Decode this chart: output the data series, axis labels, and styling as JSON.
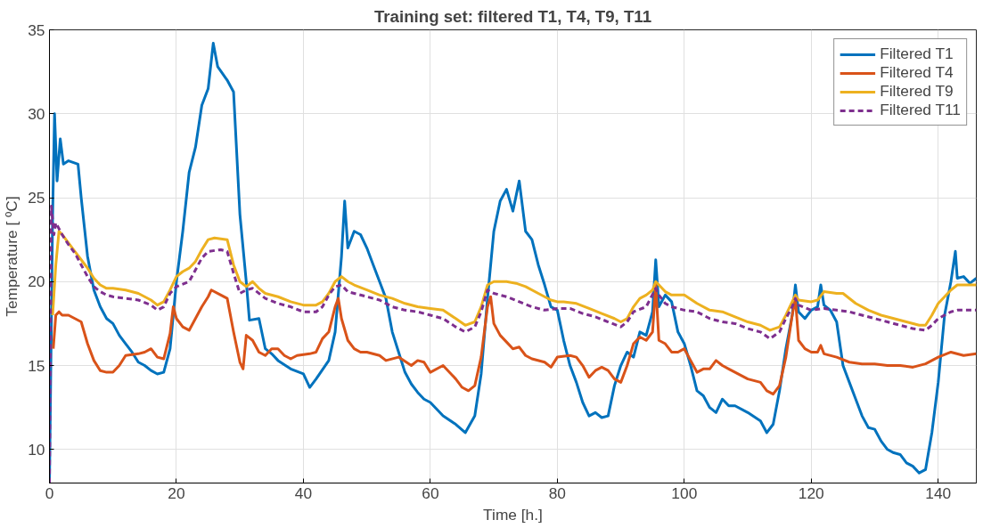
{
  "chart_data": {
    "type": "line",
    "title": "Training set: filtered T1, T4, T9, T11",
    "xlabel": "Time [h.]",
    "ylabel": "Temperature [ ºC]",
    "xlim": [
      0,
      146
    ],
    "ylim": [
      8,
      35
    ],
    "xticks": [
      0,
      20,
      40,
      60,
      80,
      100,
      120,
      140
    ],
    "yticks": [
      10,
      15,
      20,
      25,
      30,
      35
    ],
    "grid": true,
    "legend": "top right",
    "marker": "none",
    "line_style": "solid",
    "series": [
      {
        "name": "Filtered T1",
        "color": "#0072bd",
        "x": [
          0,
          0.5,
          0.8,
          1.2,
          1.7,
          2.2,
          3,
          4.5,
          5,
          6,
          7,
          8,
          9,
          10,
          11,
          12,
          13,
          14,
          15,
          16,
          17,
          18,
          19,
          20,
          21,
          22,
          23,
          24,
          25,
          25.8,
          26.5,
          28,
          29,
          30,
          31,
          31.5,
          33,
          34,
          35,
          36,
          38,
          40,
          41,
          42,
          44,
          45,
          46,
          46.5,
          47,
          48,
          49,
          50,
          51,
          52,
          53,
          54,
          55,
          56,
          57,
          58,
          59,
          60,
          62,
          64,
          65.5,
          67,
          68,
          69,
          70,
          71,
          72,
          73,
          74,
          75,
          76,
          77,
          78,
          79,
          80,
          81,
          82,
          83,
          84,
          85,
          86,
          87,
          88,
          89,
          90,
          91,
          92,
          93,
          94,
          95,
          95.5,
          96,
          97,
          98,
          99,
          100,
          101,
          102,
          103,
          104,
          105,
          106,
          107,
          108,
          110,
          112,
          113,
          114,
          115,
          116,
          117,
          117.5,
          118,
          119,
          120,
          121,
          121.5,
          122,
          123,
          124,
          125,
          126,
          127,
          128,
          129,
          130,
          131,
          132,
          133,
          134,
          135,
          136,
          137,
          138,
          139,
          140,
          141,
          142,
          142.7,
          143,
          144,
          145,
          146
        ],
        "values": [
          8,
          24,
          30,
          26,
          28.5,
          27,
          27.2,
          27,
          25,
          21.5,
          19.5,
          18.5,
          17.8,
          17.5,
          16.8,
          16.3,
          15.8,
          15.2,
          15,
          14.7,
          14.5,
          14.6,
          16,
          20,
          23,
          26.5,
          28,
          30.5,
          31.5,
          34.2,
          32.8,
          32,
          31.3,
          24,
          20,
          17.7,
          17.8,
          16,
          15.7,
          15.3,
          14.8,
          14.5,
          13.7,
          14.2,
          15.3,
          17,
          21.5,
          24.8,
          22,
          23,
          22.8,
          22,
          21,
          20,
          19,
          17,
          15.8,
          14.6,
          13.9,
          13.4,
          13,
          12.8,
          12,
          11.5,
          11,
          12,
          14.5,
          19,
          23,
          24.8,
          25.5,
          24.2,
          26,
          23,
          22.5,
          21,
          19.8,
          18.5,
          18.3,
          16.5,
          15,
          14,
          12.8,
          12,
          12.2,
          11.9,
          12,
          13.8,
          15,
          15.8,
          15.5,
          17,
          16.8,
          18.2,
          21.3,
          18.5,
          19.2,
          18.8,
          17,
          16.3,
          15,
          13.5,
          13.2,
          12.5,
          12.2,
          13,
          12.6,
          12.6,
          12.2,
          11.7,
          11,
          11.5,
          13.5,
          16,
          18,
          19.8,
          18.2,
          17.8,
          18.3,
          18.5,
          19.8,
          18.6,
          18.3,
          17.6,
          15,
          14,
          13,
          12,
          11.3,
          11.2,
          10.5,
          10,
          9.8,
          9.7,
          9.2,
          9,
          8.6,
          8.8,
          11,
          14,
          18,
          20,
          21.8,
          20.2,
          20.3,
          19.9,
          20.2
        ]
      },
      {
        "name": "Filtered T4",
        "color": "#d95319",
        "x": [
          0.6,
          1,
          1.5,
          2,
          3,
          4,
          5,
          6,
          7,
          8,
          9,
          10,
          11,
          12,
          14,
          15,
          16,
          17,
          18,
          19,
          19.5,
          20,
          21,
          22,
          23,
          24,
          25,
          25.5,
          27,
          28,
          29,
          30,
          30.5,
          31,
          32,
          33,
          34,
          35,
          36,
          37,
          38,
          39,
          41,
          42,
          43,
          44,
          45,
          45.5,
          46,
          47,
          48,
          49,
          50,
          52,
          53,
          55,
          57,
          58,
          59,
          60,
          62,
          64,
          65,
          66,
          67,
          68,
          69,
          69.5,
          70,
          71,
          72,
          73,
          74,
          75,
          76,
          78,
          79,
          80,
          82,
          83,
          84,
          85,
          86,
          87,
          88,
          89,
          90,
          91,
          92,
          93,
          94,
          95,
          95.5,
          96,
          97,
          98,
          99,
          100,
          101,
          102,
          103,
          104,
          105,
          106,
          107,
          108,
          110,
          112,
          113,
          114,
          115,
          116,
          117,
          117.5,
          118,
          119,
          120,
          121,
          121.5,
          122,
          124,
          126,
          128,
          130,
          132,
          134,
          136,
          138,
          140,
          142,
          144,
          146
        ],
        "values": [
          16,
          18,
          18.2,
          18,
          18,
          17.8,
          17.6,
          16.3,
          15.3,
          14.7,
          14.6,
          14.6,
          15,
          15.6,
          15.7,
          15.8,
          16,
          15.5,
          15.4,
          16.9,
          18.5,
          17.8,
          17.3,
          17.1,
          17.8,
          18.5,
          19.1,
          19.5,
          19.2,
          19,
          17,
          15.2,
          14.8,
          16.8,
          16.5,
          15.8,
          15.6,
          16,
          16,
          15.6,
          15.4,
          15.6,
          15.7,
          15.8,
          16.6,
          17,
          18.5,
          19,
          17.8,
          16.5,
          16,
          15.8,
          15.8,
          15.6,
          15.3,
          15.5,
          15,
          15.3,
          15.2,
          14.6,
          15,
          14.2,
          13.7,
          13.5,
          13.8,
          15.5,
          18.5,
          19.1,
          17.5,
          16.8,
          16.4,
          16,
          16.1,
          15.6,
          15.4,
          15.2,
          14.9,
          15.5,
          15.6,
          15.5,
          15,
          14.3,
          14.7,
          14.9,
          14.7,
          14.2,
          14,
          15,
          16.3,
          16.7,
          16.5,
          17,
          19.8,
          16.5,
          16.3,
          15.8,
          15.8,
          16,
          15.3,
          14.6,
          14.8,
          14.8,
          15.3,
          15,
          14.8,
          14.6,
          14.2,
          14,
          13.5,
          13.3,
          13.8,
          15.5,
          18,
          19,
          16.5,
          16,
          15.8,
          15.8,
          16.2,
          15.7,
          15.5,
          15.2,
          15.1,
          15.1,
          15,
          15,
          14.9,
          15.1,
          15.5,
          15.8,
          15.6,
          15.7
        ]
      },
      {
        "name": "Filtered T9",
        "color": "#edb120",
        "x": [
          0.5,
          1,
          1.5,
          2,
          3,
          4,
          5,
          6,
          7,
          8,
          9,
          10,
          12,
          14,
          16,
          17,
          18,
          19,
          20,
          21,
          22,
          23,
          24,
          25,
          26,
          28,
          29,
          30,
          31,
          32,
          33,
          34,
          36,
          38,
          40,
          42,
          43,
          44,
          45,
          46,
          47,
          48,
          50,
          52,
          54,
          56,
          58,
          60,
          62,
          64,
          65.5,
          67,
          68,
          69,
          70,
          72,
          73.5,
          75,
          77,
          79,
          80,
          81,
          83,
          85,
          87,
          89,
          90,
          91,
          92,
          93,
          94,
          95,
          95.5,
          96,
          97,
          98,
          100,
          102,
          104,
          106,
          108,
          110,
          112,
          113.5,
          115,
          116,
          117,
          117.5,
          118,
          120,
          121,
          122,
          124,
          125,
          127,
          129,
          131,
          133,
          135,
          137,
          138,
          139,
          140,
          142,
          143,
          146
        ],
        "values": [
          18,
          21,
          23,
          22.8,
          22.3,
          21.8,
          21.3,
          20.8,
          20.2,
          19.8,
          19.6,
          19.6,
          19.5,
          19.3,
          18.9,
          18.6,
          18.8,
          19.5,
          20.3,
          20.6,
          20.8,
          21.2,
          21.9,
          22.5,
          22.6,
          22.5,
          21,
          20,
          19.7,
          20,
          19.6,
          19.3,
          19.1,
          18.8,
          18.6,
          18.6,
          18.8,
          19.3,
          20,
          20.3,
          20,
          19.8,
          19.5,
          19.2,
          19,
          18.7,
          18.5,
          18.4,
          18.3,
          17.8,
          17.4,
          17.6,
          18.5,
          19.8,
          20,
          20,
          19.9,
          19.7,
          19.3,
          18.9,
          18.8,
          18.8,
          18.7,
          18.4,
          18.1,
          17.8,
          17.6,
          17.8,
          18.5,
          19,
          19.2,
          19.5,
          20,
          19.8,
          19.4,
          19.2,
          19.2,
          18.7,
          18.3,
          18.2,
          17.9,
          17.6,
          17.4,
          17.1,
          17.3,
          18,
          18.8,
          19.2,
          18.9,
          18.8,
          18.9,
          19.4,
          19.3,
          19.3,
          18.7,
          18.3,
          18,
          17.8,
          17.6,
          17.4,
          17.4,
          18,
          18.7,
          19.5,
          19.8,
          19.8
        ]
      },
      {
        "name": "Filtered T11",
        "color": "#7e2f8e",
        "line_style": "dashed",
        "x": [
          0,
          0.3,
          0.7,
          1,
          2,
          3,
          4,
          5,
          6,
          7,
          8,
          9,
          10,
          12,
          14,
          16,
          17,
          18,
          19,
          20,
          22,
          24,
          25,
          27,
          28,
          29,
          30,
          31,
          32,
          34,
          36,
          38,
          40,
          42,
          43,
          44,
          45,
          46,
          47,
          48,
          50,
          52,
          54,
          56,
          58,
          60,
          62,
          64,
          65.5,
          67,
          68,
          69,
          70,
          72,
          74,
          76,
          78,
          80,
          82,
          84,
          86,
          88,
          90,
          91,
          92,
          94,
          95.5,
          96,
          97,
          98,
          100,
          102,
          104,
          106,
          108,
          110,
          112,
          113.5,
          115,
          116,
          117,
          117.5,
          118,
          120,
          122,
          124,
          126,
          128,
          130,
          132,
          134,
          136,
          138,
          139,
          140,
          142,
          143,
          146
        ],
        "values": [
          8,
          24.5,
          22.8,
          23.5,
          22.8,
          22.2,
          21.7,
          21,
          20.3,
          19.7,
          19.4,
          19.2,
          19.1,
          19,
          18.9,
          18.6,
          18.3,
          18.5,
          19.3,
          19.7,
          20,
          21.4,
          21.8,
          21.9,
          21.8,
          20.5,
          19.3,
          19.5,
          19.6,
          19,
          18.7,
          18.5,
          18.2,
          18.2,
          18.5,
          19.2,
          19.7,
          19.8,
          19.4,
          19.3,
          19.1,
          18.9,
          18.5,
          18.3,
          18.2,
          18,
          17.8,
          17.3,
          17,
          17.3,
          18.2,
          19.5,
          19.3,
          19.1,
          18.8,
          18.5,
          18.3,
          18.4,
          18.4,
          18.1,
          17.9,
          17.6,
          17.3,
          17.6,
          18.2,
          18.5,
          19.6,
          19.2,
          18.7,
          18.5,
          18.3,
          18.2,
          17.8,
          17.6,
          17.5,
          17.2,
          17,
          16.6,
          17,
          17.8,
          18.5,
          19,
          18.6,
          18.3,
          18.4,
          18.3,
          18.2,
          18,
          17.8,
          17.6,
          17.4,
          17.2,
          17.1,
          17.4,
          17.8,
          18.2,
          18.3,
          18.3
        ]
      }
    ]
  }
}
